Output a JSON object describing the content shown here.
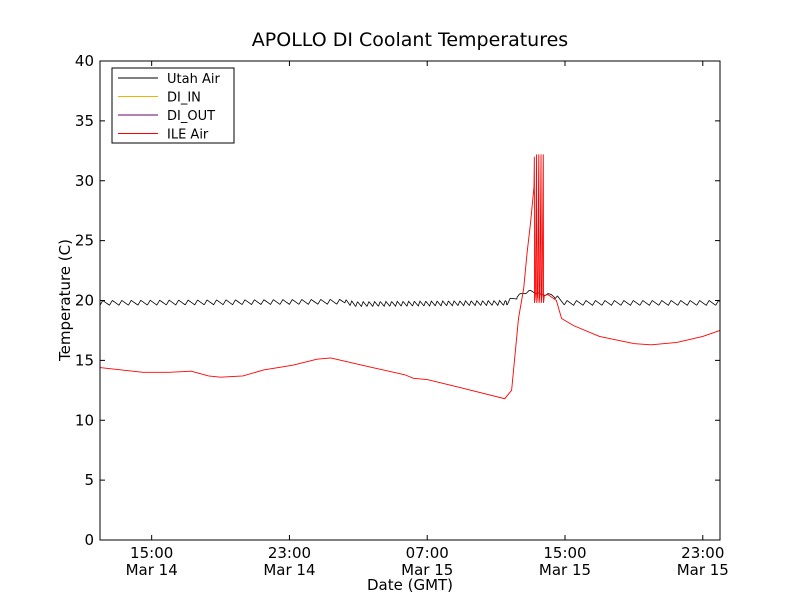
{
  "chart_data": {
    "type": "line",
    "title": "APOLLO DI Coolant Temperatures",
    "xlabel": "Date (GMT)",
    "ylabel": "Temperature (C)",
    "xlim_hours": [
      0,
      36
    ],
    "ylim": [
      0,
      40
    ],
    "x_unit": "hours since 12:00 GMT Mar 14",
    "yticks": [
      0,
      5,
      10,
      15,
      20,
      25,
      30,
      35,
      40
    ],
    "xticks": [
      {
        "x": 3,
        "time": "15:00",
        "date": "Mar 14"
      },
      {
        "x": 11,
        "time": "23:00",
        "date": "Mar 14"
      },
      {
        "x": 19,
        "time": "07:00",
        "date": "Mar 15"
      },
      {
        "x": 27,
        "time": "15:00",
        "date": "Mar 15"
      },
      {
        "x": 35,
        "time": "23:00",
        "date": "Mar 15"
      }
    ],
    "legend_position": "top-left",
    "series": [
      {
        "name": "Utah Air",
        "color": "#000000",
        "oscillation": {
          "period_h": 0.55,
          "amplitude": 0.4,
          "fast_period_h": 0.33,
          "fast_range": [
            14.2,
            23.6
          ]
        },
        "points": [
          [
            0,
            19.8
          ],
          [
            14.2,
            19.9
          ],
          [
            14.8,
            19.7
          ],
          [
            23.6,
            19.8
          ],
          [
            24.4,
            20.5
          ],
          [
            25.0,
            20.8
          ],
          [
            25.6,
            20.5
          ],
          [
            26.2,
            20.5
          ],
          [
            27.0,
            19.8
          ],
          [
            36,
            19.8
          ]
        ]
      },
      {
        "name": "DI_IN",
        "color": "#e6b800",
        "points": []
      },
      {
        "name": "DI_OUT",
        "color": "#660066",
        "points": []
      },
      {
        "name": "ILE Air",
        "color": "#ff0000",
        "points": [
          [
            0,
            14.4
          ],
          [
            2.5,
            14.0
          ],
          [
            4.0,
            14.0
          ],
          [
            5.3,
            14.1
          ],
          [
            6.3,
            13.7
          ],
          [
            7.0,
            13.6
          ],
          [
            8.3,
            13.7
          ],
          [
            9.5,
            14.2
          ],
          [
            11.2,
            14.6
          ],
          [
            12.6,
            15.1
          ],
          [
            13.4,
            15.2
          ],
          [
            15.5,
            14.5
          ],
          [
            17.7,
            13.8
          ],
          [
            18.2,
            13.5
          ],
          [
            19.0,
            13.4
          ],
          [
            21.0,
            12.7
          ],
          [
            23.5,
            11.8
          ],
          [
            23.9,
            12.5
          ],
          [
            24.3,
            18.5
          ],
          [
            24.6,
            21.0
          ],
          [
            24.8,
            24.0
          ],
          [
            25.0,
            26.5
          ],
          [
            25.2,
            29.5
          ],
          [
            25.5,
            20.5
          ],
          [
            26.0,
            20.5
          ],
          [
            26.5,
            20.0
          ],
          [
            26.8,
            18.5
          ],
          [
            27.5,
            17.9
          ],
          [
            29.0,
            17.0
          ],
          [
            31.0,
            16.4
          ],
          [
            32.0,
            16.3
          ],
          [
            33.5,
            16.5
          ],
          [
            35.0,
            17.0
          ],
          [
            36,
            17.5
          ]
        ],
        "spikes": {
          "x_range": [
            25.2,
            25.85
          ],
          "count": 5,
          "high": 32.2,
          "low": 19.8
        }
      }
    ]
  }
}
